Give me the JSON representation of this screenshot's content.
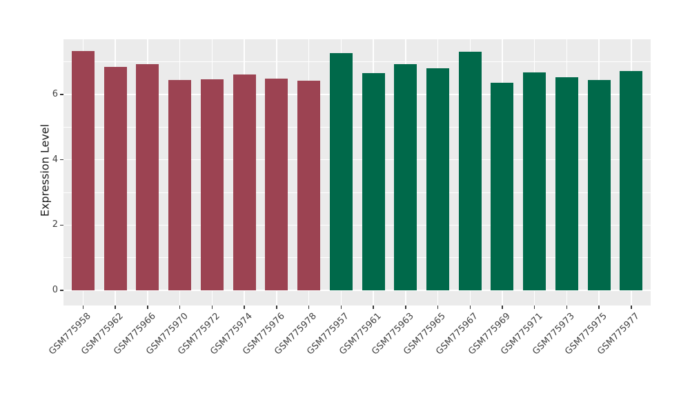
{
  "chart_data": {
    "type": "bar",
    "title": "",
    "xlabel": "",
    "ylabel": "Expression Level",
    "yticks": [
      0,
      2,
      4,
      6
    ],
    "minor_gridlines": [
      1,
      3,
      5,
      7
    ],
    "ylim": [
      -0.47,
      7.7
    ],
    "grid": "white major and minor gridlines on gray panel",
    "legend_position": "none",
    "categories": [
      "GSM775958",
      "GSM775962",
      "GSM775966",
      "GSM775970",
      "GSM775972",
      "GSM775974",
      "GSM775976",
      "GSM775978",
      "GSM775957",
      "GSM775961",
      "GSM775963",
      "GSM775965",
      "GSM775967",
      "GSM775969",
      "GSM775971",
      "GSM775973",
      "GSM775975",
      "GSM775977"
    ],
    "values": [
      7.33,
      6.84,
      6.93,
      6.44,
      6.46,
      6.61,
      6.49,
      6.43,
      7.26,
      6.66,
      6.94,
      6.8,
      7.31,
      6.36,
      6.68,
      6.53,
      6.44,
      6.71
    ],
    "groups": [
      "maroon",
      "maroon",
      "maroon",
      "maroon",
      "maroon",
      "maroon",
      "maroon",
      "maroon",
      "green",
      "green",
      "green",
      "green",
      "green",
      "green",
      "green",
      "green",
      "green",
      "green"
    ],
    "colors": {
      "maroon": "#9C4352",
      "green": "#00694A",
      "panel_bg": "#EBEBEB",
      "grid": "#FFFFFF",
      "axis_text": "#404040",
      "axis_title": "#1A1A1A",
      "tick_mark": "#333333"
    }
  }
}
